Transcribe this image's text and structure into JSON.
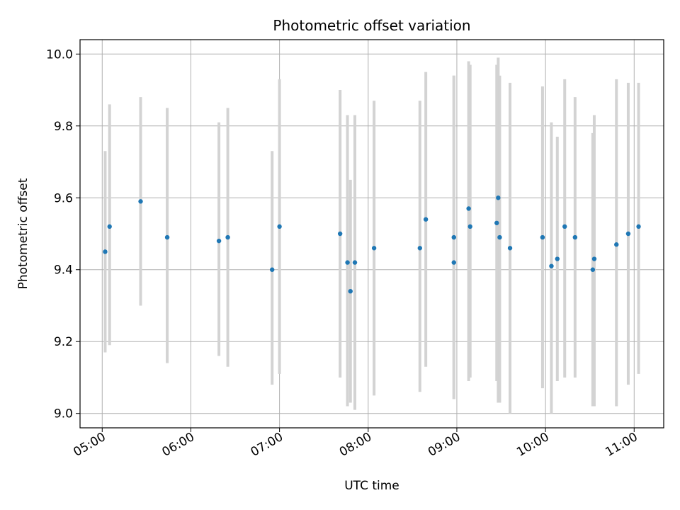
{
  "chart_data": {
    "type": "scatter",
    "title": "Photometric offset variation",
    "xlabel": "UTC time",
    "ylabel": "Photometric offset",
    "x_unit": "time of day (HH:MM)",
    "xlim": [
      "04:45",
      "11:20"
    ],
    "ylim": [
      8.96,
      10.04
    ],
    "x_ticks": [
      "05:00",
      "06:00",
      "07:00",
      "08:00",
      "09:00",
      "10:00",
      "11:00"
    ],
    "y_ticks": [
      "9.0",
      "9.2",
      "9.4",
      "9.6",
      "9.8",
      "10.0"
    ],
    "y_tick_values": [
      9.0,
      9.2,
      9.4,
      9.6,
      9.8,
      10.0
    ],
    "grid": true,
    "legend": "none",
    "marker_color": "#1f77b4",
    "errorbar_color": "#d3d3d3",
    "series": [
      {
        "points": [
          {
            "x": "05:02",
            "y": 9.45,
            "ylow": 9.17,
            "yhigh": 9.73
          },
          {
            "x": "05:05",
            "y": 9.52,
            "ylow": 9.19,
            "yhigh": 9.86
          },
          {
            "x": "05:26",
            "y": 9.59,
            "ylow": 9.3,
            "yhigh": 9.88
          },
          {
            "x": "05:44",
            "y": 9.49,
            "ylow": 9.14,
            "yhigh": 9.85
          },
          {
            "x": "06:19",
            "y": 9.48,
            "ylow": 9.16,
            "yhigh": 9.81
          },
          {
            "x": "06:25",
            "y": 9.49,
            "ylow": 9.13,
            "yhigh": 9.85
          },
          {
            "x": "06:55",
            "y": 9.4,
            "ylow": 9.08,
            "yhigh": 9.73
          },
          {
            "x": "07:00",
            "y": 9.52,
            "ylow": 9.11,
            "yhigh": 9.93
          },
          {
            "x": "07:41",
            "y": 9.5,
            "ylow": 9.1,
            "yhigh": 9.9
          },
          {
            "x": "07:46",
            "y": 9.42,
            "ylow": 9.02,
            "yhigh": 9.83
          },
          {
            "x": "07:48",
            "y": 9.34,
            "ylow": 9.03,
            "yhigh": 9.65
          },
          {
            "x": "07:51",
            "y": 9.42,
            "ylow": 9.01,
            "yhigh": 9.83
          },
          {
            "x": "08:04",
            "y": 9.46,
            "ylow": 9.05,
            "yhigh": 9.87
          },
          {
            "x": "08:35",
            "y": 9.46,
            "ylow": 9.06,
            "yhigh": 9.87
          },
          {
            "x": "08:39",
            "y": 9.54,
            "ylow": 9.13,
            "yhigh": 9.95
          },
          {
            "x": "08:58",
            "y": 9.49,
            "ylow": 9.04,
            "yhigh": 9.94
          },
          {
            "x": "08:58",
            "y": 9.42,
            "ylow": 9.04,
            "yhigh": 9.94
          },
          {
            "x": "09:08",
            "y": 9.57,
            "ylow": 9.09,
            "yhigh": 9.98
          },
          {
            "x": "09:09",
            "y": 9.52,
            "ylow": 9.1,
            "yhigh": 9.97
          },
          {
            "x": "09:27",
            "y": 9.53,
            "ylow": 9.09,
            "yhigh": 9.97
          },
          {
            "x": "09:28",
            "y": 9.6,
            "ylow": 9.03,
            "yhigh": 9.99
          },
          {
            "x": "09:29",
            "y": 9.49,
            "ylow": 9.03,
            "yhigh": 9.94
          },
          {
            "x": "09:36",
            "y": 9.46,
            "ylow": 9.0,
            "yhigh": 9.92
          },
          {
            "x": "09:58",
            "y": 9.49,
            "ylow": 9.07,
            "yhigh": 9.91
          },
          {
            "x": "10:04",
            "y": 9.41,
            "ylow": 9.0,
            "yhigh": 9.81
          },
          {
            "x": "10:08",
            "y": 9.43,
            "ylow": 9.09,
            "yhigh": 9.77
          },
          {
            "x": "10:13",
            "y": 9.52,
            "ylow": 9.1,
            "yhigh": 9.93
          },
          {
            "x": "10:20",
            "y": 9.49,
            "ylow": 9.1,
            "yhigh": 9.88
          },
          {
            "x": "10:32",
            "y": 9.4,
            "ylow": 9.02,
            "yhigh": 9.78
          },
          {
            "x": "10:33",
            "y": 9.43,
            "ylow": 9.02,
            "yhigh": 9.83
          },
          {
            "x": "10:48",
            "y": 9.47,
            "ylow": 9.02,
            "yhigh": 9.93
          },
          {
            "x": "10:56",
            "y": 9.5,
            "ylow": 9.08,
            "yhigh": 9.92
          },
          {
            "x": "11:03",
            "y": 9.52,
            "ylow": 9.11,
            "yhigh": 9.92
          }
        ]
      }
    ]
  }
}
